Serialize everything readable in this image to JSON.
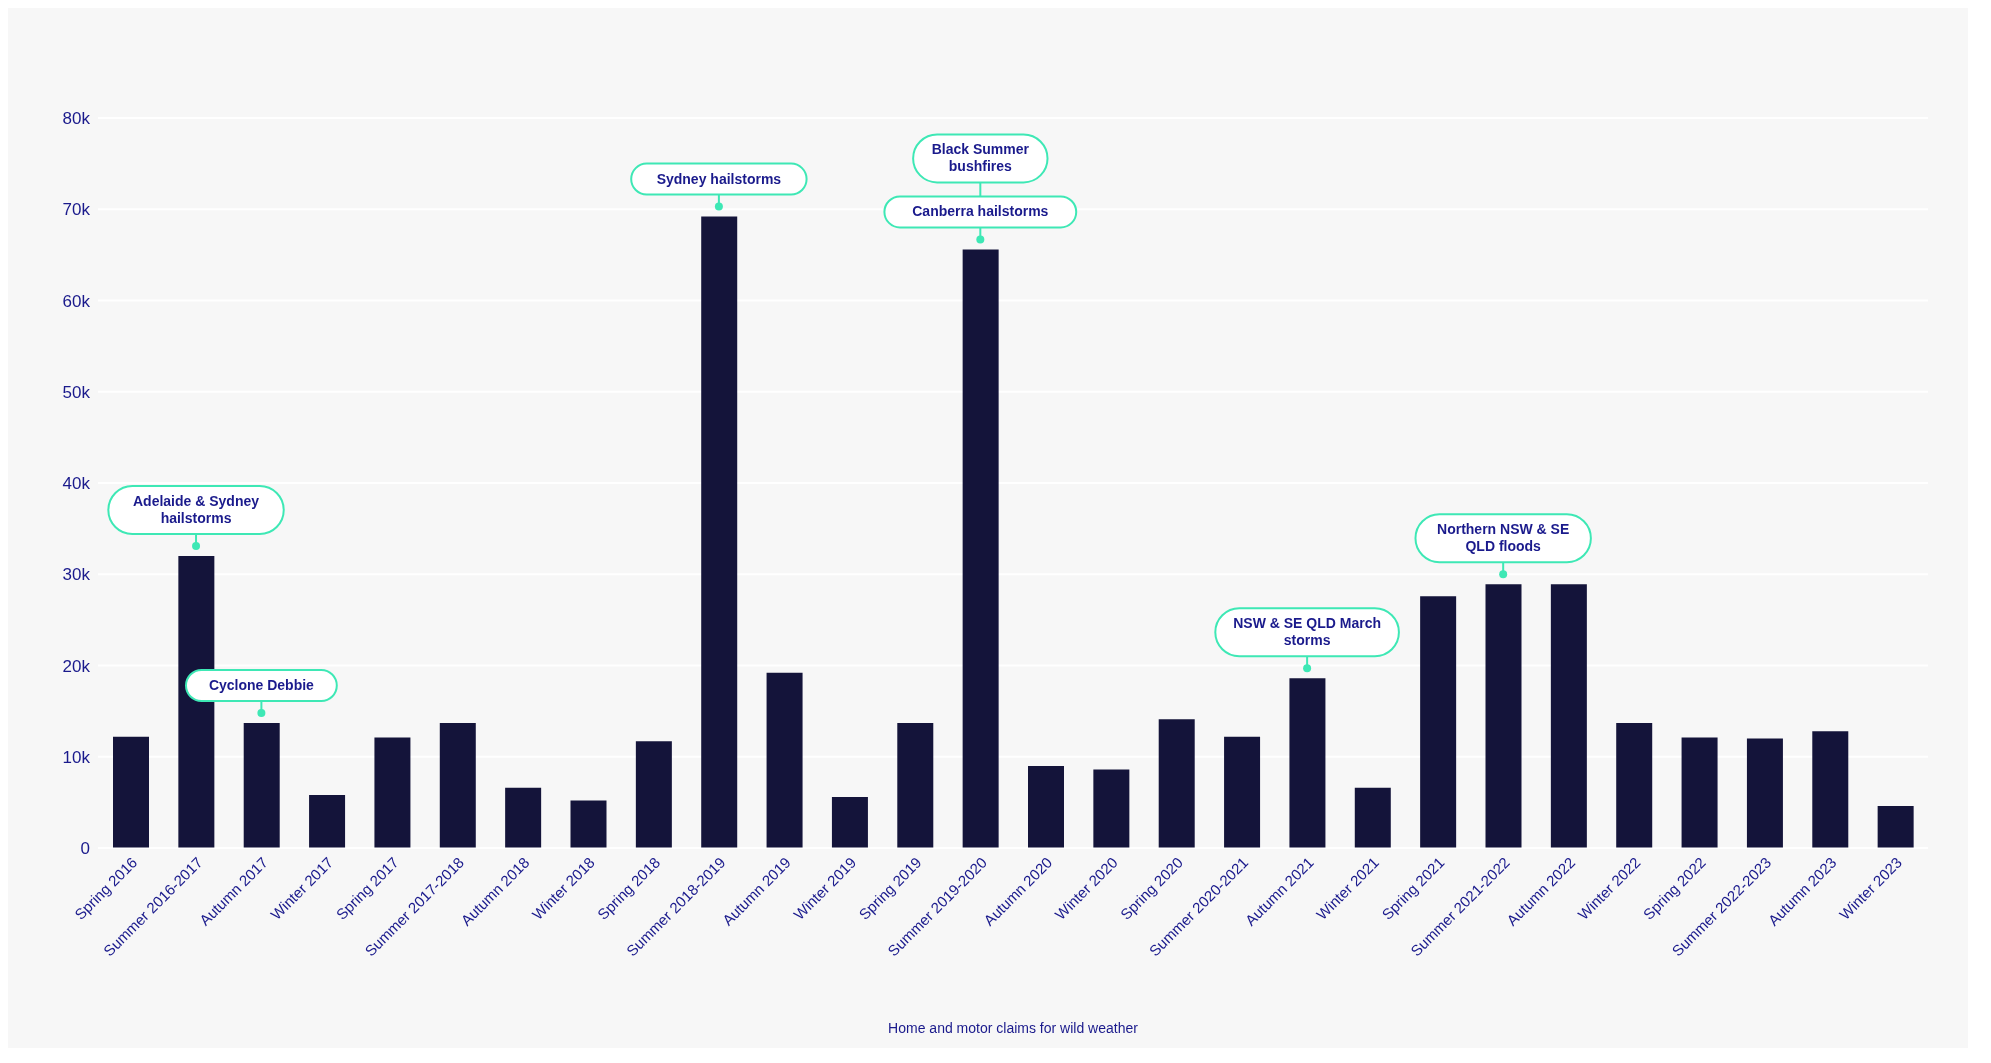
{
  "chart_data": {
    "type": "bar",
    "xlabel": "Home and motor claims for wild weather",
    "categories": [
      "Spring 2016",
      "Summer 2016-2017",
      "Autumn 2017",
      "Winter 2017",
      "Spring 2017",
      "Summer 2017-2018",
      "Autumn 2018",
      "Winter 2018",
      "Spring 2018",
      "Summer 2018-2019",
      "Autumn 2019",
      "Winter 2019",
      "Spring 2019",
      "Summer 2019-2020",
      "Autumn 2020",
      "Winter 2020",
      "Spring 2020",
      "Summer 2020-2021",
      "Autumn 2021",
      "Winter 2021",
      "Spring 2021",
      "Summer 2021-2022",
      "Autumn 2022",
      "Winter 2022",
      "Spring 2022",
      "Summer 2022-2023",
      "Autumn 2023",
      "Winter 2023"
    ],
    "values": [
      12200,
      32000,
      13700,
      5800,
      12100,
      13700,
      6600,
      5200,
      11700,
      69200,
      19200,
      5600,
      13700,
      65600,
      9000,
      8600,
      14100,
      12200,
      18600,
      6600,
      27600,
      28900,
      28900,
      13700,
      12100,
      12000,
      12800,
      4600
    ],
    "color": "#14143a",
    "ylim": [
      0,
      80000
    ],
    "yticks": [
      0,
      {
        "value": 10000,
        "label": "10k"
      },
      {
        "value": 20000,
        "label": "20k"
      },
      {
        "value": 30000,
        "label": "30k"
      },
      {
        "value": 40000,
        "label": "40k"
      },
      {
        "value": 50000,
        "label": "50k"
      },
      {
        "value": 60000,
        "label": "60k"
      },
      {
        "value": 70000,
        "label": "70k"
      },
      {
        "value": 80000,
        "label": "80k"
      }
    ],
    "grid": "y",
    "annotations": [
      {
        "text": "Adelaide & Sydney hailstorms",
        "x": "Summer 2016-2017",
        "y": 32000
      },
      {
        "text": "Cyclone Debbie",
        "x": "Autumn 2017",
        "y": 13700
      },
      {
        "text": "Sydney hailstorms",
        "x": "Summer 2018-2019",
        "y": 69200
      },
      {
        "text": "Canberra hailstorms",
        "x": "Summer 2019-2020",
        "y": 65600
      },
      "Black Summer bushfires",
      {
        "text": "NSW & SE QLD March storms",
        "x": "Autumn 2021",
        "y": 18600
      },
      {
        "text": "Northern NSW & SE QLD floods",
        "x": "Summer 2021-2022",
        "y": 28900
      }
    ]
  }
}
